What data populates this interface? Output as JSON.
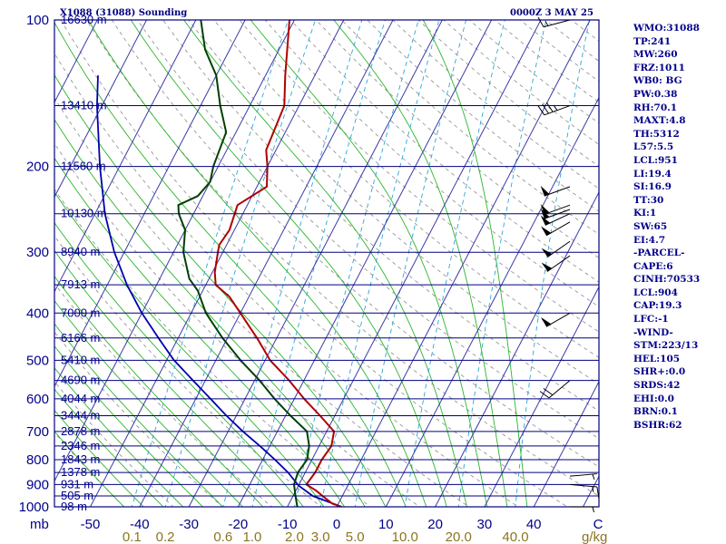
{
  "header": {
    "station": "X1088 (31088) Sounding",
    "time": "0000Z  3 MAY 25"
  },
  "indices": [
    "WMO:31088",
    "TP:241",
    "MW:260",
    "FRZ:1011",
    "WB0: BG",
    "PW:0.38",
    "RH:70.1",
    "MAXT:4.8",
    "TH:5312",
    "L57:5.5",
    "LCL:951",
    "LI:19.4",
    "SI:16.9",
    "TT:30",
    "KI:1",
    "SW:65",
    "EI:4.7",
    "-PARCEL-",
    "CAPE:6",
    "CINH:70533",
    "LCL:904",
    "CAP:19.3",
    "LFC:-1",
    "-WIND-",
    "STM:223/13",
    "HEL:105",
    "SHR+:0.0",
    "SRDS:42",
    "EHI:0.0",
    "BRN:0.1",
    "BSHR:62"
  ],
  "colors": {
    "frame": "#00007f",
    "isobar": "#00007f",
    "isotherm": "#3a3aa8",
    "dry_adiabat": "#8a8a8a",
    "moist_adiabat": "#2bb52b",
    "mixing_ratio": "#2aa7d8",
    "temperature": "#b00000",
    "dewpoint": "#004000",
    "parcel": "#0000b0",
    "wind_barb": "#000000",
    "axis_text": "#00008b",
    "mixing_text": "#8b7520"
  },
  "chart_data": {
    "type": "skew-t log-p",
    "pressure_levels_mb": [
      1000,
      900,
      800,
      700,
      600,
      500,
      400,
      300,
      200,
      100
    ],
    "pressure_axis_label": "mb",
    "temperature_axis_c": [
      -50,
      -40,
      -30,
      -20,
      -10,
      0,
      10,
      20,
      30,
      40
    ],
    "temperature_axis_end_label": "C",
    "mixing_ratio_labels": [
      "0.1",
      "0.2",
      "0.6",
      "1.0",
      "2.0",
      "3.0",
      "5.0",
      "10.0",
      "20.0",
      "40.0"
    ],
    "mixing_ratio_unit": "g/kg",
    "height_labels": [
      {
        "text": "16630 m",
        "p": 100
      },
      {
        "text": "13410 m",
        "p": 150
      },
      {
        "text": "11560 m",
        "p": 200
      },
      {
        "text": "10130 m",
        "p": 250
      },
      {
        "text": "8940 m",
        "p": 300
      },
      {
        "text": "7913 m",
        "p": 350
      },
      {
        "text": "7000 m",
        "p": 400
      },
      {
        "text": "6166 m",
        "p": 450
      },
      {
        "text": "5410 m",
        "p": 500
      },
      {
        "text": "4690 m",
        "p": 550
      },
      {
        "text": "4044 m",
        "p": 600
      },
      {
        "text": "3444 m",
        "p": 650
      },
      {
        "text": "2878 m",
        "p": 700
      },
      {
        "text": "2346 m",
        "p": 750
      },
      {
        "text": "1843 m",
        "p": 800
      },
      {
        "text": "1378 m",
        "p": 850
      },
      {
        "text": "931 m",
        "p": 900
      },
      {
        "text": "505 m",
        "p": 950
      },
      {
        "text": "98 m",
        "p": 1000
      }
    ],
    "temperature_profile": [
      {
        "p": 1000,
        "t": 1.0
      },
      {
        "p": 985,
        "t": -1.2
      },
      {
        "p": 950,
        "t": -4.0
      },
      {
        "p": 925,
        "t": -6.0
      },
      {
        "p": 900,
        "t": -8.5
      },
      {
        "p": 850,
        "t": -8.0
      },
      {
        "p": 800,
        "t": -8.0
      },
      {
        "p": 750,
        "t": -7.5
      },
      {
        "p": 700,
        "t": -8.5
      },
      {
        "p": 650,
        "t": -13.0
      },
      {
        "p": 600,
        "t": -18.0
      },
      {
        "p": 550,
        "t": -23.0
      },
      {
        "p": 500,
        "t": -29.0
      },
      {
        "p": 450,
        "t": -34.0
      },
      {
        "p": 400,
        "t": -40.0
      },
      {
        "p": 370,
        "t": -44.0
      },
      {
        "p": 350,
        "t": -48.0
      },
      {
        "p": 330,
        "t": -49.5
      },
      {
        "p": 300,
        "t": -51.0
      },
      {
        "p": 290,
        "t": -51.5
      },
      {
        "p": 270,
        "t": -51.0
      },
      {
        "p": 240,
        "t": -52.0
      },
      {
        "p": 220,
        "t": -48.0
      },
      {
        "p": 200,
        "t": -50.0
      },
      {
        "p": 185,
        "t": -52.0
      },
      {
        "p": 150,
        "t": -53.0
      },
      {
        "p": 130,
        "t": -56.0
      },
      {
        "p": 100,
        "t": -61.0
      }
    ],
    "dewpoint_profile": [
      {
        "p": 1000,
        "t": -8.0
      },
      {
        "p": 950,
        "t": -9.5
      },
      {
        "p": 900,
        "t": -11.0
      },
      {
        "p": 850,
        "t": -11.5
      },
      {
        "p": 800,
        "t": -11.0
      },
      {
        "p": 750,
        "t": -12.0
      },
      {
        "p": 700,
        "t": -14.0
      },
      {
        "p": 650,
        "t": -19.0
      },
      {
        "p": 600,
        "t": -24.0
      },
      {
        "p": 550,
        "t": -29.0
      },
      {
        "p": 500,
        "t": -35.0
      },
      {
        "p": 450,
        "t": -41.0
      },
      {
        "p": 400,
        "t": -47.0
      },
      {
        "p": 360,
        "t": -51.0
      },
      {
        "p": 340,
        "t": -54.0
      },
      {
        "p": 300,
        "t": -58.0
      },
      {
        "p": 270,
        "t": -60.0
      },
      {
        "p": 250,
        "t": -63.0
      },
      {
        "p": 240,
        "t": -64.0
      },
      {
        "p": 230,
        "t": -61.0
      },
      {
        "p": 215,
        "t": -60.0
      },
      {
        "p": 200,
        "t": -61.0
      },
      {
        "p": 170,
        "t": -62.0
      },
      {
        "p": 150,
        "t": -66.0
      },
      {
        "p": 130,
        "t": -70.0
      },
      {
        "p": 115,
        "t": -75.0
      },
      {
        "p": 100,
        "t": -79.0
      }
    ],
    "parcel_profile": [
      {
        "p": 1000,
        "t": 1.0
      },
      {
        "p": 950,
        "t": -6.0
      },
      {
        "p": 904,
        "t": -10.0
      },
      {
        "p": 850,
        "t": -13.5
      },
      {
        "p": 800,
        "t": -17.5
      },
      {
        "p": 750,
        "t": -22.0
      },
      {
        "p": 700,
        "t": -27.0
      },
      {
        "p": 650,
        "t": -32.0
      },
      {
        "p": 600,
        "t": -37.0
      },
      {
        "p": 550,
        "t": -42.5
      },
      {
        "p": 500,
        "t": -48.5
      },
      {
        "p": 450,
        "t": -54.0
      },
      {
        "p": 400,
        "t": -60.0
      },
      {
        "p": 350,
        "t": -66.0
      },
      {
        "p": 300,
        "t": -72.0
      },
      {
        "p": 250,
        "t": -78.0
      },
      {
        "p": 200,
        "t": -84.0
      },
      {
        "p": 150,
        "t": -91.0
      },
      {
        "p": 130,
        "t": -94.0
      }
    ],
    "winds": [
      {
        "p": 1000,
        "dir": 90,
        "kt": 5
      },
      {
        "p": 900,
        "dir": 95,
        "kt": 15
      },
      {
        "p": 865,
        "dir": 85,
        "kt": 5
      },
      {
        "p": 550,
        "dir": 230,
        "kt": 20
      },
      {
        "p": 400,
        "dir": 240,
        "kt": 50
      },
      {
        "p": 305,
        "dir": 235,
        "kt": 50
      },
      {
        "p": 285,
        "dir": 235,
        "kt": 50
      },
      {
        "p": 260,
        "dir": 240,
        "kt": 50
      },
      {
        "p": 250,
        "dir": 245,
        "kt": 50
      },
      {
        "p": 245,
        "dir": 250,
        "kt": 50
      },
      {
        "p": 240,
        "dir": 250,
        "kt": 50
      },
      {
        "p": 220,
        "dir": 250,
        "kt": 50
      },
      {
        "p": 150,
        "dir": 250,
        "kt": 35
      },
      {
        "p": 100,
        "dir": 255,
        "kt": 15
      }
    ]
  }
}
